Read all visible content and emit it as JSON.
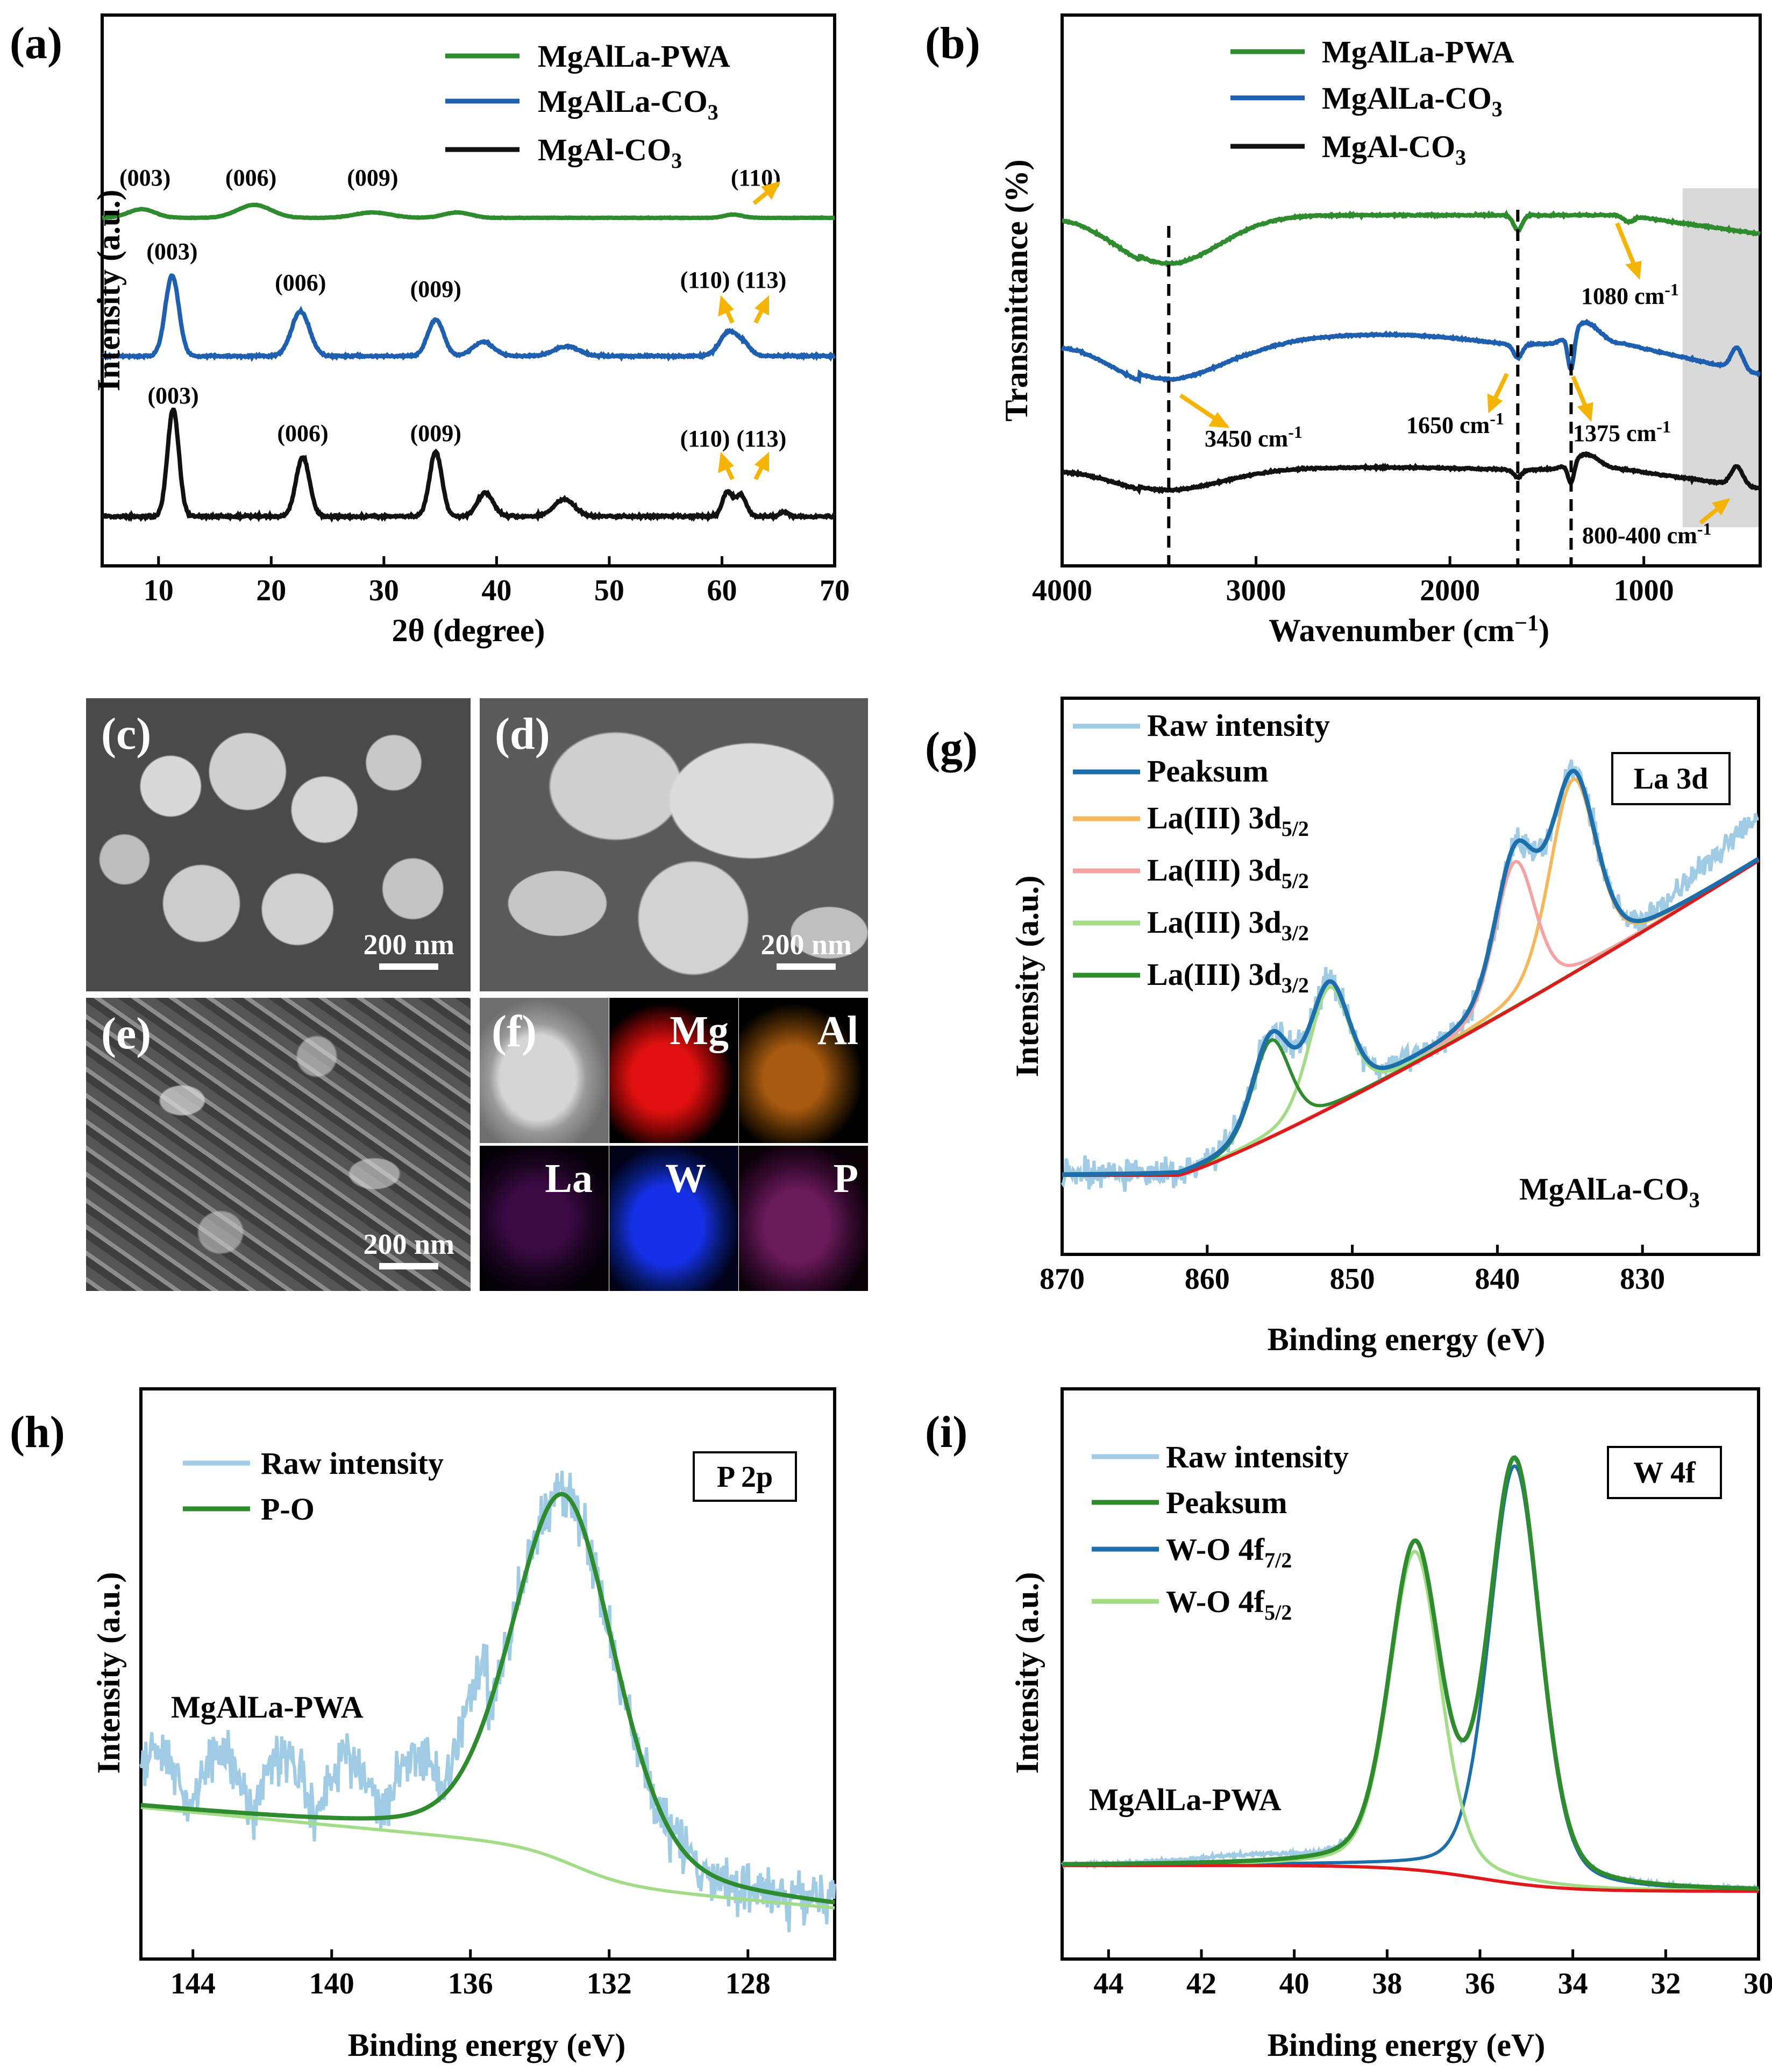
{
  "colors": {
    "green": "#2e8b2e",
    "blue": "#1f5fb0",
    "black": "#111111",
    "raw": "#9fcbe4",
    "peaksum_blue": "#1c6fab",
    "orange": "#f5b75a",
    "pink": "#f4a3a3",
    "lightgreen": "#a2dc86",
    "baseline_red": "#e01a1a",
    "arrow": "#f5b400",
    "shade": "#d9d9d9"
  },
  "panels": {
    "a": {
      "letter": "(a)"
    },
    "b": {
      "letter": "(b)"
    },
    "c": {
      "letter": "(c)",
      "scale": "200 nm"
    },
    "d": {
      "letter": "(d)",
      "scale": "200 nm"
    },
    "e": {
      "letter": "(e)",
      "scale": "200 nm"
    },
    "f": {
      "letter": "(f)",
      "elements": [
        "Mg",
        "Al",
        "La",
        "W",
        "P"
      ]
    },
    "g": {
      "letter": "(g)"
    },
    "h": {
      "letter": "(h)"
    },
    "i": {
      "letter": "(i)"
    }
  },
  "chart_data": [
    {
      "id": "a",
      "type": "line",
      "xlabel": "2θ (degree)",
      "ylabel": "Intensity (a.u.)",
      "xlim": [
        5,
        70
      ],
      "xticks": [
        10,
        20,
        30,
        40,
        50,
        60,
        70
      ],
      "legend": "top-right",
      "series": [
        {
          "name": "MgAlLa-PWA",
          "color": "green",
          "offset": 0.0,
          "amp": 0.05,
          "peaks": [
            [
              8.5,
              0.4,
              1.2
            ],
            [
              18.5,
              0.6,
              1.5
            ],
            [
              29,
              0.25,
              1.6
            ],
            [
              36.5,
              0.25,
              1.2
            ],
            [
              61,
              0.15,
              0.8
            ]
          ]
        },
        {
          "name": "MgAlLa-CO3",
          "color": "blue",
          "offset": 0.31,
          "amp": 0.32,
          "peaks": [
            [
              11.2,
              1.0,
              0.6
            ],
            [
              22.6,
              0.55,
              0.8
            ],
            [
              34.6,
              0.45,
              0.7
            ],
            [
              38.8,
              0.18,
              0.9
            ],
            [
              46.2,
              0.12,
              1.1
            ],
            [
              60.6,
              0.3,
              0.8
            ],
            [
              62,
              0.12,
              0.6
            ]
          ]
        },
        {
          "name": "MgAl-CO3",
          "color": "black",
          "offset": 0.66,
          "amp": 0.42,
          "peaks": [
            [
              11.3,
              1.0,
              0.5
            ],
            [
              22.8,
              0.55,
              0.6
            ],
            [
              34.6,
              0.6,
              0.55
            ],
            [
              39,
              0.22,
              0.7
            ],
            [
              46,
              0.16,
              0.9
            ],
            [
              60.5,
              0.23,
              0.45
            ],
            [
              61.7,
              0.2,
              0.45
            ],
            [
              65.5,
              0.04,
              0.4
            ]
          ]
        }
      ],
      "peak_labels": [
        {
          "text": "(003)",
          "x": 8.8,
          "row": 0
        },
        {
          "text": "(006)",
          "x": 18.2,
          "row": 0
        },
        {
          "text": "(009)",
          "x": 29,
          "row": 0
        },
        {
          "text": "(110)",
          "x": 63,
          "row": 0
        },
        {
          "text": "(003)",
          "x": 11.2,
          "row": 1
        },
        {
          "text": "(006)",
          "x": 22.6,
          "row": 1
        },
        {
          "text": "(009)",
          "x": 34.6,
          "row": 1
        },
        {
          "text": "(110)",
          "x": 58.5,
          "row": 1
        },
        {
          "text": "(113)",
          "x": 63.5,
          "row": 1
        },
        {
          "text": "(003)",
          "x": 11.3,
          "row": 2
        },
        {
          "text": "(006)",
          "x": 22.8,
          "row": 2
        },
        {
          "text": "(009)",
          "x": 34.6,
          "row": 2
        },
        {
          "text": "(110)",
          "x": 58.5,
          "row": 2
        },
        {
          "text": "(113)",
          "x": 63.5,
          "row": 2
        }
      ]
    },
    {
      "id": "b",
      "type": "line",
      "xlabel": "Wavenumber (cm⁻¹)",
      "ylabel": "Transmittance (%)",
      "xlim": [
        4000,
        400
      ],
      "xticks": [
        4000,
        3000,
        2000,
        1000
      ],
      "legend": "top-left",
      "series": [
        {
          "name": "MgAlLa-PWA",
          "color": "green"
        },
        {
          "name": "MgAlLa-CO3",
          "color": "blue"
        },
        {
          "name": "MgAl-CO3",
          "color": "black"
        }
      ],
      "dashed_lines": [
        3450,
        1650,
        1375
      ],
      "shaded_region": [
        800,
        400
      ],
      "annotations": [
        "3450 cm-1",
        "1650 cm-1",
        "1375 cm-1",
        "1080 cm-1",
        "800-400 cm-1"
      ]
    },
    {
      "id": "g",
      "type": "line",
      "xlabel": "Binding energy (eV)",
      "ylabel": "Intensity (a.u.)",
      "xlim": [
        870,
        822
      ],
      "xticks": [
        870,
        860,
        850,
        840,
        830
      ],
      "box_label": "La 3d",
      "sample_label": "MgAlLa-CO3",
      "legend": "top-left",
      "series": [
        {
          "name": "Raw intensity",
          "color": "raw"
        },
        {
          "name": "Peaksum",
          "color": "peaksum_blue"
        },
        {
          "name": "La(III) 3d5/2",
          "color": "orange",
          "center": 834.8,
          "height": 0.4,
          "width": 1.6
        },
        {
          "name": "La(III) 3d5/2",
          "color": "pink",
          "center": 838.8,
          "height": 0.3,
          "width": 1.4
        },
        {
          "name": "La(III) 3d3/2",
          "color": "lightgreen",
          "center": 851.6,
          "height": 0.25,
          "width": 1.4
        },
        {
          "name": "La(III) 3d3/2",
          "color": "green",
          "center": 855.6,
          "height": 0.2,
          "width": 1.3
        }
      ]
    },
    {
      "id": "h",
      "type": "line",
      "xlabel": "Binding energy (eV)",
      "ylabel": "Intensity (a.u.)",
      "xlim": [
        145.5,
        125.5
      ],
      "xticks": [
        144,
        140,
        136,
        132,
        128
      ],
      "box_label": "P 2p",
      "sample_label": "MgAlLa-PWA",
      "legend": "top-left",
      "series": [
        {
          "name": "Raw intensity",
          "color": "raw"
        },
        {
          "name": "P-O",
          "color": "green",
          "center": 133.3,
          "height": 0.62,
          "width": 1.5
        }
      ]
    },
    {
      "id": "i",
      "type": "line",
      "xlabel": "Binding energy (eV)",
      "ylabel": "Intensity (a.u.)",
      "xlim": [
        45,
        30
      ],
      "xticks": [
        44,
        42,
        40,
        38,
        36,
        34,
        32,
        30
      ],
      "box_label": "W 4f",
      "sample_label": "MgAlLa-PWA",
      "legend": "top-left",
      "series": [
        {
          "name": "Raw intensity",
          "color": "raw"
        },
        {
          "name": "Peaksum",
          "color": "green"
        },
        {
          "name": "W-O 4f7/2",
          "color": "peaksum_blue",
          "center": 35.25,
          "height": 0.97,
          "width": 0.55
        },
        {
          "name": "W-O 4f5/2",
          "color": "lightgreen",
          "center": 37.4,
          "height": 0.74,
          "width": 0.55
        }
      ]
    }
  ]
}
